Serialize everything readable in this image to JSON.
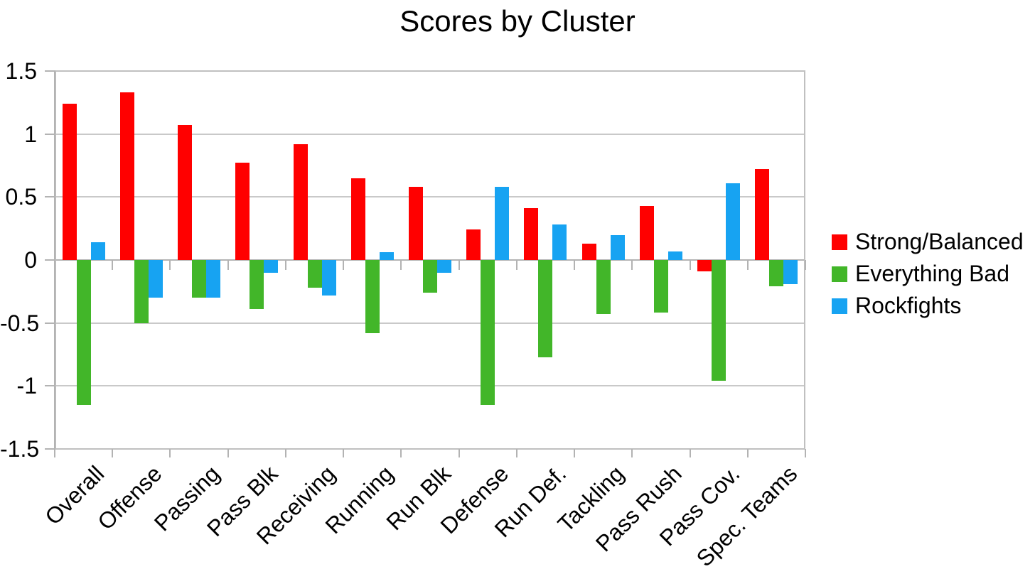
{
  "chart_data": {
    "type": "bar",
    "title": "Scores by Cluster",
    "categories": [
      "Overall",
      "Offense",
      "Passing",
      "Pass Blk",
      "Receiving",
      "Running",
      "Run Blk",
      "Defense",
      "Run Def.",
      "Tackling",
      "Pass Rush",
      "Pass Cov.",
      "Spec. Teams"
    ],
    "series": [
      {
        "name": "Strong/Balanced",
        "color": "#ff0000",
        "values": [
          1.24,
          1.33,
          1.07,
          0.77,
          0.92,
          0.65,
          0.58,
          0.24,
          0.41,
          0.13,
          0.43,
          -0.09,
          0.72
        ]
      },
      {
        "name": "Everything Bad",
        "color": "#42b629",
        "values": [
          -1.15,
          -0.5,
          -0.3,
          -0.39,
          -0.22,
          -0.58,
          -0.26,
          -1.15,
          -0.77,
          -0.43,
          -0.42,
          -0.96,
          -0.21
        ]
      },
      {
        "name": "Rockfights",
        "color": "#17a3f2",
        "values": [
          0.14,
          -0.3,
          -0.3,
          -0.1,
          -0.28,
          0.06,
          -0.1,
          0.58,
          0.28,
          0.2,
          0.07,
          0.61,
          -0.19
        ]
      }
    ],
    "ylim": [
      -1.5,
      1.5
    ],
    "ytick_step": 0.5,
    "ytick_labels": [
      "1.5",
      "1",
      "0.5",
      "0",
      "-0.5",
      "-1",
      "-1.5"
    ],
    "xlabel": "",
    "ylabel": "",
    "grid": true,
    "legend_position": "right",
    "grid_color": "#c9c9c9",
    "axis_color": "#b3b3b3",
    "text_color": "#000000",
    "background_color": "#ffffff"
  }
}
